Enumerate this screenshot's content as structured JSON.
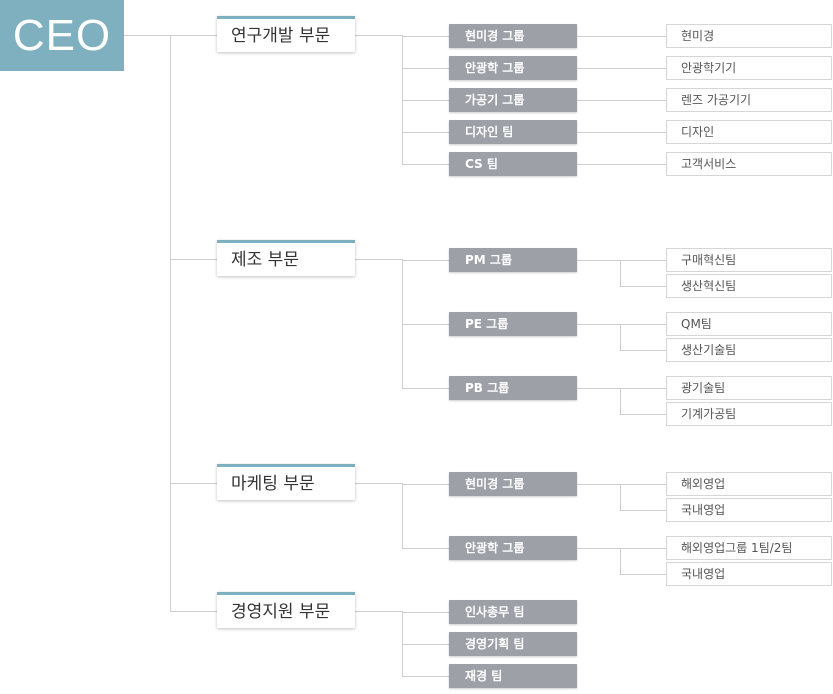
{
  "ceo": {
    "label": "CEO",
    "color": "#7fb0c0"
  },
  "divisions": [
    {
      "name": "연구개발 부문",
      "groups": [
        {
          "name": "현미경 그룹",
          "teams": [
            "현미경"
          ]
        },
        {
          "name": "안광학 그룹",
          "teams": [
            "안광학기기"
          ]
        },
        {
          "name": "가공기 그룹",
          "teams": [
            "렌즈 가공기기"
          ]
        },
        {
          "name": "디자인 팀",
          "teams": [
            "디자인"
          ]
        },
        {
          "name": "CS 팀",
          "teams": [
            "고객서비스"
          ]
        }
      ]
    },
    {
      "name": "제조 부문",
      "groups": [
        {
          "name": "PM 그룹",
          "teams": [
            "구매혁신팀",
            "생산혁신팀"
          ]
        },
        {
          "name": "PE 그룹",
          "teams": [
            "QM팀",
            "생산기술팀"
          ]
        },
        {
          "name": "PB 그룹",
          "teams": [
            "광기술팀",
            "기계가공팀"
          ]
        }
      ]
    },
    {
      "name": "마케팅 부문",
      "groups": [
        {
          "name": "현미경 그룹",
          "teams": [
            "해외영업",
            "국내영업"
          ]
        },
        {
          "name": "안광학 그룹",
          "teams": [
            "해외영업그룹 1팀/2팀",
            "국내영업"
          ]
        }
      ]
    },
    {
      "name": "경영지원 부문",
      "groups": [
        {
          "name": "인사총무 팀",
          "teams": []
        },
        {
          "name": "경영기획 팀",
          "teams": []
        },
        {
          "name": "재경 팀",
          "teams": []
        }
      ]
    }
  ]
}
